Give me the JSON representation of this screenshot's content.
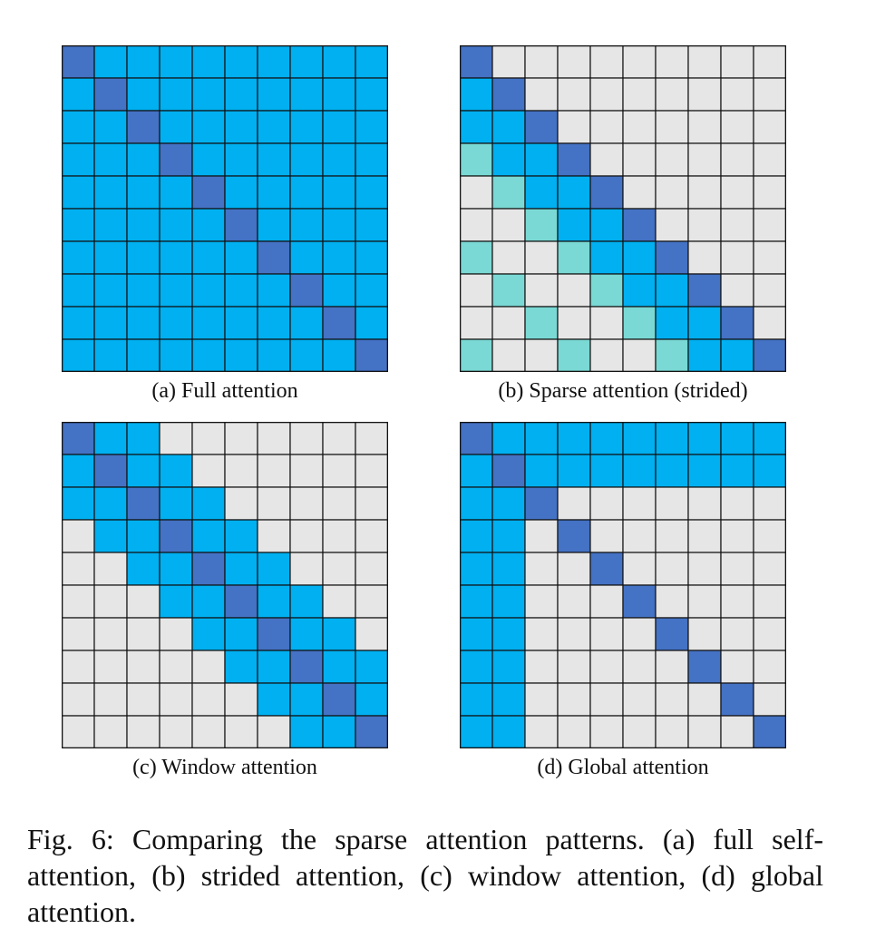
{
  "colors": {
    "diagonal": "#4472C4",
    "attended": "#00B0F0",
    "strided": "#7AD9D4",
    "empty": "#E6E6E6",
    "grid_line": "#111111"
  },
  "legend_codes": {
    "0": "empty",
    "1": "attended",
    "2": "diagonal",
    "3": "strided"
  },
  "panels": [
    {
      "caption": "(a) Full attention",
      "matrix": [
        [
          2,
          1,
          1,
          1,
          1,
          1,
          1,
          1,
          1,
          1
        ],
        [
          1,
          2,
          1,
          1,
          1,
          1,
          1,
          1,
          1,
          1
        ],
        [
          1,
          1,
          2,
          1,
          1,
          1,
          1,
          1,
          1,
          1
        ],
        [
          1,
          1,
          1,
          2,
          1,
          1,
          1,
          1,
          1,
          1
        ],
        [
          1,
          1,
          1,
          1,
          2,
          1,
          1,
          1,
          1,
          1
        ],
        [
          1,
          1,
          1,
          1,
          1,
          2,
          1,
          1,
          1,
          1
        ],
        [
          1,
          1,
          1,
          1,
          1,
          1,
          2,
          1,
          1,
          1
        ],
        [
          1,
          1,
          1,
          1,
          1,
          1,
          1,
          2,
          1,
          1
        ],
        [
          1,
          1,
          1,
          1,
          1,
          1,
          1,
          1,
          2,
          1
        ],
        [
          1,
          1,
          1,
          1,
          1,
          1,
          1,
          1,
          1,
          2
        ]
      ]
    },
    {
      "caption": "(b) Sparse attention (strided)",
      "matrix": [
        [
          2,
          0,
          0,
          0,
          0,
          0,
          0,
          0,
          0,
          0
        ],
        [
          1,
          2,
          0,
          0,
          0,
          0,
          0,
          0,
          0,
          0
        ],
        [
          1,
          1,
          2,
          0,
          0,
          0,
          0,
          0,
          0,
          0
        ],
        [
          3,
          1,
          1,
          2,
          0,
          0,
          0,
          0,
          0,
          0
        ],
        [
          0,
          3,
          1,
          1,
          2,
          0,
          0,
          0,
          0,
          0
        ],
        [
          0,
          0,
          3,
          1,
          1,
          2,
          0,
          0,
          0,
          0
        ],
        [
          3,
          0,
          0,
          3,
          1,
          1,
          2,
          0,
          0,
          0
        ],
        [
          0,
          3,
          0,
          0,
          3,
          1,
          1,
          2,
          0,
          0
        ],
        [
          0,
          0,
          3,
          0,
          0,
          3,
          1,
          1,
          2,
          0
        ],
        [
          3,
          0,
          0,
          3,
          0,
          0,
          3,
          1,
          1,
          2
        ]
      ]
    },
    {
      "caption": "(c) Window attention",
      "matrix": [
        [
          2,
          1,
          1,
          0,
          0,
          0,
          0,
          0,
          0,
          0
        ],
        [
          1,
          2,
          1,
          1,
          0,
          0,
          0,
          0,
          0,
          0
        ],
        [
          1,
          1,
          2,
          1,
          1,
          0,
          0,
          0,
          0,
          0
        ],
        [
          0,
          1,
          1,
          2,
          1,
          1,
          0,
          0,
          0,
          0
        ],
        [
          0,
          0,
          1,
          1,
          2,
          1,
          1,
          0,
          0,
          0
        ],
        [
          0,
          0,
          0,
          1,
          1,
          2,
          1,
          1,
          0,
          0
        ],
        [
          0,
          0,
          0,
          0,
          1,
          1,
          2,
          1,
          1,
          0
        ],
        [
          0,
          0,
          0,
          0,
          0,
          1,
          1,
          2,
          1,
          1
        ],
        [
          0,
          0,
          0,
          0,
          0,
          0,
          1,
          1,
          2,
          1
        ],
        [
          0,
          0,
          0,
          0,
          0,
          0,
          0,
          1,
          1,
          2
        ]
      ]
    },
    {
      "caption": "(d) Global attention",
      "matrix": [
        [
          2,
          1,
          1,
          1,
          1,
          1,
          1,
          1,
          1,
          1
        ],
        [
          1,
          2,
          1,
          1,
          1,
          1,
          1,
          1,
          1,
          1
        ],
        [
          1,
          1,
          2,
          0,
          0,
          0,
          0,
          0,
          0,
          0
        ],
        [
          1,
          1,
          0,
          2,
          0,
          0,
          0,
          0,
          0,
          0
        ],
        [
          1,
          1,
          0,
          0,
          2,
          0,
          0,
          0,
          0,
          0
        ],
        [
          1,
          1,
          0,
          0,
          0,
          2,
          0,
          0,
          0,
          0
        ],
        [
          1,
          1,
          0,
          0,
          0,
          0,
          2,
          0,
          0,
          0
        ],
        [
          1,
          1,
          0,
          0,
          0,
          0,
          0,
          2,
          0,
          0
        ],
        [
          1,
          1,
          0,
          0,
          0,
          0,
          0,
          0,
          2,
          0
        ],
        [
          1,
          1,
          0,
          0,
          0,
          0,
          0,
          0,
          0,
          2
        ]
      ]
    }
  ],
  "figure_caption": "Fig. 6: Comparing the sparse attention patterns. (a) full self-attention, (b) strided attention, (c) window attention, (d) global attention."
}
